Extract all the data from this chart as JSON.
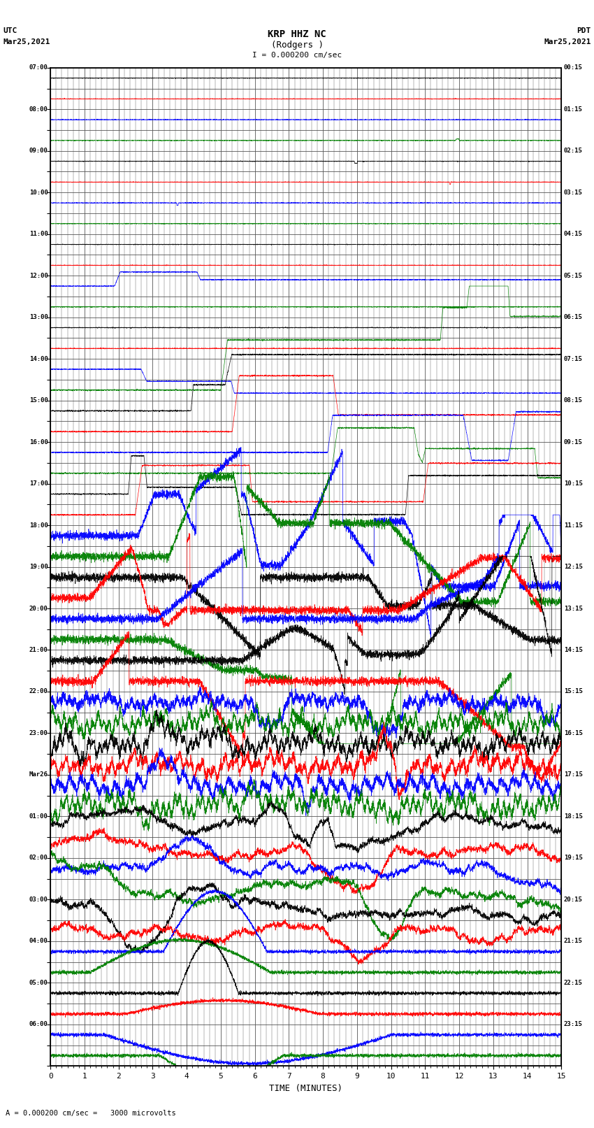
{
  "title_line1": "KRP HHZ NC",
  "title_line2": "(Rodgers )",
  "scale_label": "I = 0.000200 cm/sec",
  "left_label_top": "UTC",
  "left_label_date": "Mar25,2021",
  "right_label_top": "PDT",
  "right_label_date": "Mar25,2021",
  "bottom_label": "TIME (MINUTES)",
  "footer_label": "= 0.000200 cm/sec =   3000 microvolts",
  "left_ytick_labels": [
    "07:00",
    "",
    "08:00",
    "",
    "09:00",
    "",
    "10:00",
    "",
    "11:00",
    "",
    "12:00",
    "",
    "13:00",
    "",
    "14:00",
    "",
    "15:00",
    "",
    "16:00",
    "",
    "17:00",
    "",
    "18:00",
    "",
    "19:00",
    "",
    "20:00",
    "",
    "21:00",
    "",
    "22:00",
    "",
    "23:00",
    "",
    "Mar26",
    "",
    "01:00",
    "",
    "02:00",
    "",
    "03:00",
    "",
    "04:00",
    "",
    "05:00",
    "",
    "06:00",
    ""
  ],
  "right_ytick_labels": [
    "00:15",
    "",
    "01:15",
    "",
    "02:15",
    "",
    "03:15",
    "",
    "04:15",
    "",
    "05:15",
    "",
    "06:15",
    "",
    "07:15",
    "",
    "08:15",
    "",
    "09:15",
    "",
    "10:15",
    "",
    "11:15",
    "",
    "12:15",
    "",
    "13:15",
    "",
    "14:15",
    "",
    "15:15",
    "",
    "16:15",
    "",
    "17:15",
    "",
    "18:15",
    "",
    "19:15",
    "",
    "20:15",
    "",
    "21:15",
    "",
    "22:15",
    "",
    "23:15",
    ""
  ],
  "num_traces": 48,
  "trace_colors": [
    "black",
    "red",
    "blue",
    "green"
  ],
  "bg_color": "white",
  "grid_color": "#555555",
  "fig_width": 8.5,
  "fig_height": 16.13
}
